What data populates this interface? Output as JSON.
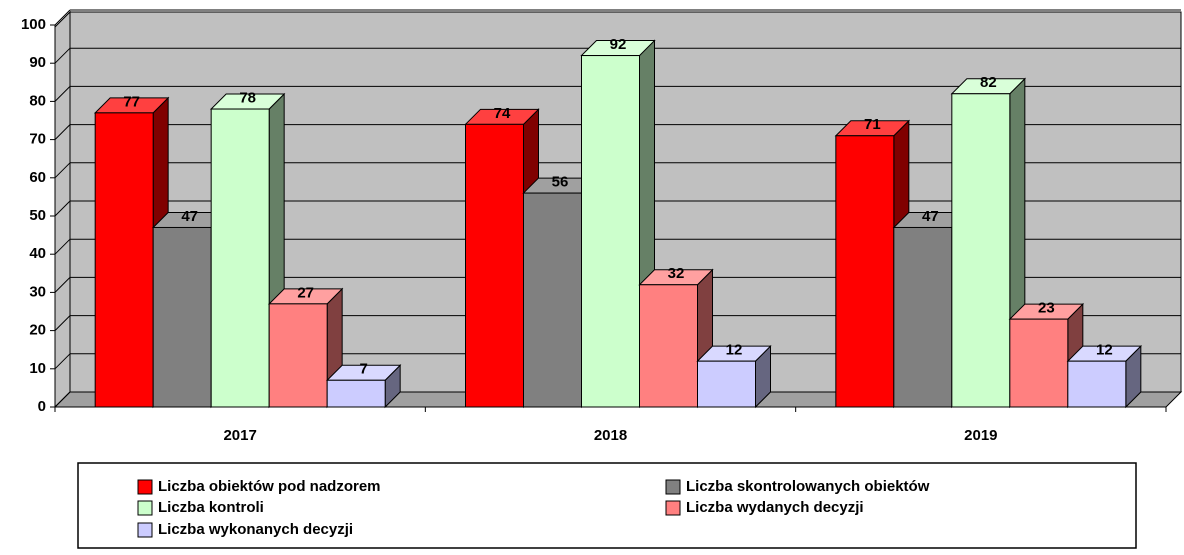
{
  "chart_data": {
    "type": "bar3d",
    "categories": [
      "2017",
      "2018",
      "2019"
    ],
    "series": [
      {
        "name": "Liczba obiektów pod nadzorem",
        "color": "#ff0000",
        "values": [
          77,
          74,
          71
        ]
      },
      {
        "name": "Liczba skontrolowanych obiektów",
        "color": "#808080",
        "values": [
          47,
          56,
          47
        ]
      },
      {
        "name": "Liczba kontroli",
        "color": "#ccffcc",
        "values": [
          78,
          92,
          82
        ]
      },
      {
        "name": "Liczba wydanych decyzji",
        "color": "#ff8080",
        "values": [
          27,
          32,
          23
        ]
      },
      {
        "name": "Liczba wykonanych decyzji",
        "color": "#ccccff",
        "values": [
          7,
          12,
          12
        ]
      }
    ],
    "ylim": [
      0,
      100
    ],
    "yticks": [
      0,
      10,
      20,
      30,
      40,
      50,
      60,
      70,
      80,
      90,
      100
    ],
    "grid": true,
    "legend": "bottom"
  }
}
